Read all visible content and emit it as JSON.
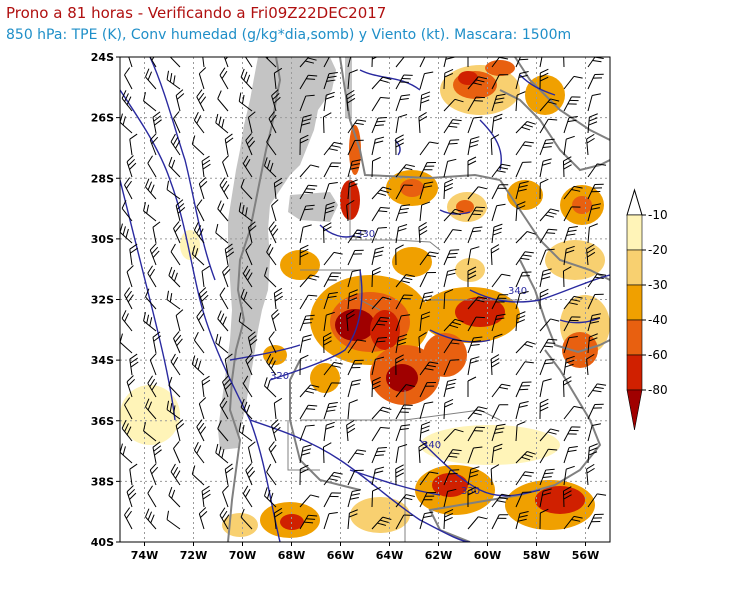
{
  "header": {
    "title": "Prono a 81 horas - Verificando a Fri09Z22DEC2017",
    "subtitle": "850 hPa: TPE (K), Conv humedad (g/kg*dia,somb) y Viento (kt). Mascara: 1500m"
  },
  "map": {
    "lat_range": [
      -40,
      -24
    ],
    "lon_range": [
      -75,
      -55
    ],
    "lat_ticks": [
      "24S",
      "26S",
      "28S",
      "30S",
      "32S",
      "34S",
      "36S",
      "38S",
      "40S"
    ],
    "lon_ticks": [
      "74W",
      "72W",
      "70W",
      "68W",
      "66W",
      "64W",
      "62W",
      "60W",
      "58W",
      "56W"
    ],
    "contour_labels": [
      "330",
      "340",
      "320",
      "340",
      "330"
    ],
    "colors": {
      "contour": "#2a2aa0",
      "mask": "#c4c4c4",
      "border": "#808080",
      "grid": "#9a9a9a"
    }
  },
  "colorbar": {
    "labels": [
      "-10",
      "-20",
      "-30",
      "-40",
      "-60",
      "-80"
    ],
    "colors": [
      "#fff4b8",
      "#f8d070",
      "#f0a000",
      "#e86010",
      "#d02000",
      "#a00000"
    ]
  }
}
